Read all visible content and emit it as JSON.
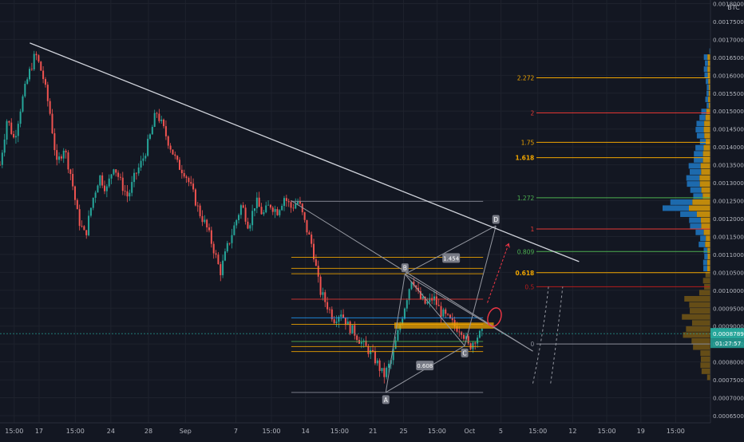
{
  "chart_data": {
    "type": "candlestick",
    "symbol_unit": "BTC",
    "background": "#131722",
    "colors": {
      "up": "#26a69a",
      "down": "#ef5350",
      "trendline": "#d1d4dc",
      "fib_gold": "#f0a500",
      "fib_red": "#e53935",
      "fib_green": "#4caf50",
      "fib_blue": "#2196f3",
      "volume_gold": "#c9900c",
      "volume_blue": "#1e6fb5",
      "last_price": "#26a69a",
      "projection": "#f23645"
    },
    "y_axis": {
      "unit": "BTC",
      "range": [
        0.00063,
        0.00181
      ],
      "tick_step": 5e-05,
      "ticks": [
        "0.00065000",
        "0.00070000",
        "0.00075000",
        "0.00080000",
        "0.00085000",
        "0.00090000",
        "0.00095000",
        "0.00100000",
        "0.00105000",
        "0.00110000",
        "0.00115000",
        "0.00120000",
        "0.00125000",
        "0.00130000",
        "0.00135000",
        "0.00140000",
        "0.00145000",
        "0.00150000",
        "0.00155000",
        "0.00160000",
        "0.00165000",
        "0.00170000",
        "0.00175000",
        "0.00180000"
      ]
    },
    "x_axis": {
      "range": [
        0,
        100
      ],
      "labels": [
        {
          "x": 2,
          "text": "15:00"
        },
        {
          "x": 5.5,
          "text": "17"
        },
        {
          "x": 10.6,
          "text": "15:00"
        },
        {
          "x": 15.6,
          "text": "24"
        },
        {
          "x": 20.9,
          "text": "28"
        },
        {
          "x": 26.1,
          "text": "Sep"
        },
        {
          "x": 33.2,
          "text": "7"
        },
        {
          "x": 38.2,
          "text": "15:00"
        },
        {
          "x": 43,
          "text": "14"
        },
        {
          "x": 47.8,
          "text": "15:00"
        },
        {
          "x": 52.5,
          "text": "21"
        },
        {
          "x": 56.8,
          "text": "25"
        },
        {
          "x": 61.5,
          "text": "15:00"
        },
        {
          "x": 66.1,
          "text": "Oct"
        },
        {
          "x": 70.5,
          "text": "5"
        },
        {
          "x": 75.7,
          "text": "15:00"
        },
        {
          "x": 80.6,
          "text": "12"
        },
        {
          "x": 85.4,
          "text": "15:00"
        },
        {
          "x": 90.2,
          "text": "19"
        },
        {
          "x": 95.1,
          "text": "15:00"
        }
      ]
    },
    "price_path": [
      [
        0,
        0.00135
      ],
      [
        1,
        0.00148
      ],
      [
        2,
        0.00142
      ],
      [
        3,
        0.00152
      ],
      [
        4,
        0.0016
      ],
      [
        5,
        0.00166
      ],
      [
        6,
        0.0016
      ],
      [
        7,
        0.0015
      ],
      [
        8,
        0.00135
      ],
      [
        9,
        0.0014
      ],
      [
        10,
        0.00132
      ],
      [
        11,
        0.0012
      ],
      [
        12,
        0.00115
      ],
      [
        13,
        0.00125
      ],
      [
        14,
        0.00132
      ],
      [
        15,
        0.00128
      ],
      [
        16,
        0.00135
      ],
      [
        17,
        0.0013
      ],
      [
        18,
        0.00126
      ],
      [
        19,
        0.00132
      ],
      [
        20,
        0.00136
      ],
      [
        21,
        0.00142
      ],
      [
        22,
        0.0015
      ],
      [
        23,
        0.00145
      ],
      [
        24,
        0.0014
      ],
      [
        25,
        0.00135
      ],
      [
        26,
        0.00133
      ],
      [
        27,
        0.00128
      ],
      [
        28,
        0.00122
      ],
      [
        29,
        0.00118
      ],
      [
        30,
        0.00112
      ],
      [
        31,
        0.00105
      ],
      [
        32,
        0.00112
      ],
      [
        33,
        0.00118
      ],
      [
        34,
        0.00124
      ],
      [
        35,
        0.00118
      ],
      [
        36,
        0.00125
      ],
      [
        37,
        0.00121
      ],
      [
        38,
        0.00124
      ],
      [
        39,
        0.00122
      ],
      [
        40,
        0.00126
      ],
      [
        41,
        0.00123
      ],
      [
        42,
        0.00125
      ],
      [
        43,
        0.00118
      ],
      [
        44,
        0.00112
      ],
      [
        45,
        0.001
      ],
      [
        46,
        0.00096
      ],
      [
        47,
        0.00092
      ],
      [
        48,
        0.00094
      ],
      [
        49,
        0.0009
      ],
      [
        50,
        0.00088
      ],
      [
        51,
        0.00085
      ],
      [
        52,
        0.00083
      ],
      [
        53,
        0.0008
      ],
      [
        54,
        0.00076
      ],
      [
        55,
        0.0008
      ],
      [
        56,
        0.00088
      ],
      [
        57,
        0.00096
      ],
      [
        58,
        0.00104
      ],
      [
        59,
        0.00098
      ],
      [
        60,
        0.00096
      ],
      [
        61,
        0.00098
      ],
      [
        62,
        0.00094
      ],
      [
        63,
        0.00092
      ],
      [
        64,
        0.0009
      ],
      [
        65,
        0.00089
      ],
      [
        66,
        0.00084
      ],
      [
        67,
        0.00087
      ],
      [
        68,
        0.00088
      ]
    ],
    "last_price": {
      "value": 0.00087897,
      "label": "0.00087897",
      "countdown": "01:27:57"
    },
    "trendline": {
      "from": {
        "x": 4.2,
        "y": 0.00169
      },
      "to": {
        "x": 81.5,
        "y": 0.00108
      }
    },
    "harmonic_points": [
      {
        "label": "A",
        "x": 54.3,
        "y": 0.000715
      },
      {
        "label": "B",
        "x": 57.0,
        "y": 0.001045
      },
      {
        "label": "C",
        "x": 65.4,
        "y": 0.000845
      },
      {
        "label": "D",
        "x": 69.8,
        "y": 0.00118
      }
    ],
    "harmonic_ratios": [
      {
        "text": "0.608",
        "x": 59.8,
        "y": 0.00079
      },
      {
        "text": "1.454",
        "x": 63.5,
        "y": 0.00109
      }
    ],
    "fib_box": {
      "x_start": 41.0,
      "x_end": 68.0,
      "levels": [
        {
          "y": 0.001248,
          "color": "#8a8d98"
        },
        {
          "y": 0.001092,
          "color": "#f0a500"
        },
        {
          "y": 0.001061,
          "color": "#f0a500"
        },
        {
          "y": 0.001046,
          "color": "#f0a500"
        },
        {
          "y": 0.000975,
          "color": "#e53935"
        },
        {
          "y": 0.000923,
          "color": "#2196f3"
        },
        {
          "y": 0.000905,
          "color": "#f0a500"
        },
        {
          "y": 0.000857,
          "color": "#4caf50"
        },
        {
          "y": 0.000843,
          "color": "#f0a500"
        },
        {
          "y": 0.000829,
          "color": "#f0a500"
        },
        {
          "y": 0.000715,
          "color": "#8a8d98"
        }
      ]
    },
    "fib_extension_levels": [
      {
        "label": "2.272",
        "y": 0.001593,
        "color": "#f0a500",
        "bold": false
      },
      {
        "label": "2",
        "y": 0.001495,
        "color": "#e53935",
        "bold": false
      },
      {
        "label": "1.75",
        "y": 0.001413,
        "color": "#f0a500",
        "bold": false
      },
      {
        "label": "1.618",
        "y": 0.00137,
        "color": "#f0a500",
        "bold": true
      },
      {
        "label": "1.272",
        "y": 0.001258,
        "color": "#4caf50",
        "bold": false
      },
      {
        "label": "1",
        "y": 0.001171,
        "color": "#e53935",
        "bold": false
      },
      {
        "label": "0.809",
        "y": 0.001108,
        "color": "#4caf50",
        "bold": false
      },
      {
        "label": "0.618",
        "y": 0.001049,
        "color": "#f0a500",
        "bold": true
      },
      {
        "label": "0.5",
        "y": 0.00101,
        "color": "#b71c1c",
        "bold": false
      },
      {
        "label": "0",
        "y": 0.00085,
        "color": "#8a8d98",
        "bold": false
      }
    ],
    "orange_zone": {
      "x_start": 55.5,
      "x_end": 69.5,
      "y_low": 0.000893,
      "y_high": 0.00091
    }
  }
}
